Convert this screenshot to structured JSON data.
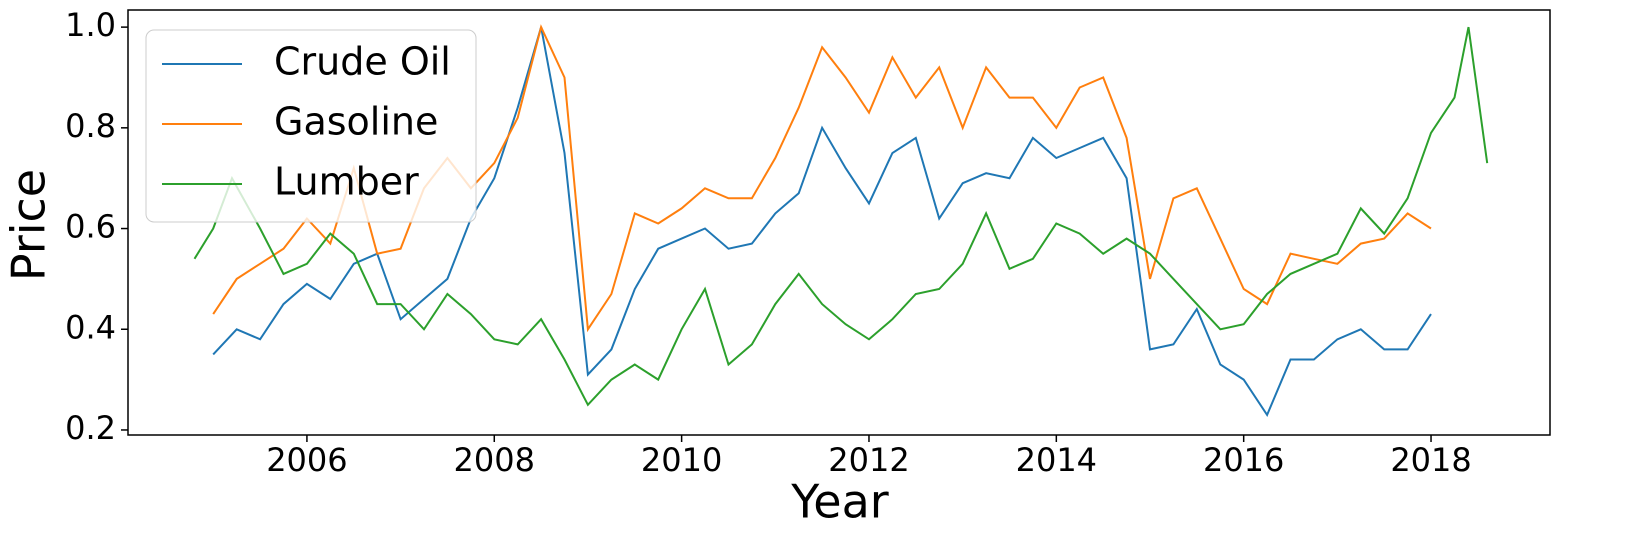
{
  "chart_data": {
    "type": "line",
    "x_label": "Year",
    "y_label": "Price",
    "xlim": [
      2004.09,
      2019.27
    ],
    "ylim": [
      0.19,
      1.034
    ],
    "xticks": [
      2006,
      2008,
      2010,
      2012,
      2014,
      2016,
      2018
    ],
    "yticks": [
      0.2,
      0.4,
      0.6,
      0.8,
      {
        "value": 1,
        "label": "1.0"
      }
    ],
    "grid": false,
    "legend": "upper left",
    "series": [
      {
        "name": "Crude Oil",
        "color": "#1f77b4",
        "x": [
          2005,
          2005.25,
          2005.5,
          2005.75,
          2006,
          2006.25,
          2006.5,
          2006.75,
          2007,
          2007.25,
          2007.5,
          2007.75,
          2008,
          2008.25,
          2008.5,
          2008.75,
          2009,
          2009.25,
          2009.5,
          2009.75,
          2010,
          2010.25,
          2010.5,
          2010.75,
          2011,
          2011.25,
          2011.5,
          2011.75,
          2012,
          2012.25,
          2012.5,
          2012.75,
          2013,
          2013.25,
          2013.5,
          2013.75,
          2014,
          2014.25,
          2014.5,
          2014.75,
          2015,
          2015.25,
          2015.5,
          2015.75,
          2016,
          2016.25,
          2016.5,
          2016.75,
          2017,
          2017.25,
          2017.5,
          2017.75,
          2018
        ],
        "values": [
          0.35,
          0.4,
          0.38,
          0.45,
          0.49,
          0.46,
          0.53,
          0.55,
          0.42,
          0.46,
          0.5,
          0.62,
          0.7,
          0.84,
          1.0,
          0.75,
          0.31,
          0.36,
          0.48,
          0.56,
          0.58,
          0.6,
          0.56,
          0.57,
          0.63,
          0.67,
          0.8,
          0.72,
          0.65,
          0.75,
          0.78,
          0.62,
          0.69,
          0.71,
          0.7,
          0.78,
          0.74,
          0.76,
          0.78,
          0.7,
          0.36,
          0.37,
          0.44,
          0.33,
          0.3,
          0.23,
          0.34,
          0.34,
          0.38,
          0.4,
          0.36,
          0.36,
          0.43
        ]
      },
      {
        "name": "Gasoline",
        "color": "#ff7f0e",
        "x": [
          2005,
          2005.25,
          2005.5,
          2005.75,
          2006,
          2006.25,
          2006.5,
          2006.75,
          2007,
          2007.25,
          2007.5,
          2007.75,
          2008,
          2008.25,
          2008.5,
          2008.75,
          2009,
          2009.25,
          2009.5,
          2009.75,
          2010,
          2010.25,
          2010.5,
          2010.75,
          2011,
          2011.25,
          2011.5,
          2011.75,
          2012,
          2012.25,
          2012.5,
          2012.75,
          2013,
          2013.25,
          2013.5,
          2013.75,
          2014,
          2014.25,
          2014.5,
          2014.75,
          2015,
          2015.25,
          2015.5,
          2015.75,
          2016,
          2016.25,
          2016.5,
          2016.75,
          2017,
          2017.25,
          2017.5,
          2017.75,
          2018
        ],
        "values": [
          0.43,
          0.5,
          0.53,
          0.56,
          0.62,
          0.57,
          0.72,
          0.55,
          0.56,
          0.68,
          0.74,
          0.68,
          0.73,
          0.82,
          1.0,
          0.9,
          0.4,
          0.47,
          0.63,
          0.61,
          0.64,
          0.68,
          0.66,
          0.66,
          0.74,
          0.84,
          0.96,
          0.9,
          0.83,
          0.94,
          0.86,
          0.92,
          0.8,
          0.92,
          0.86,
          0.86,
          0.8,
          0.88,
          0.9,
          0.78,
          0.5,
          0.66,
          0.68,
          0.58,
          0.48,
          0.45,
          0.55,
          0.54,
          0.53,
          0.57,
          0.58,
          0.63,
          0.6
        ]
      },
      {
        "name": "Lumber",
        "color": "#2ca02c",
        "x": [
          2004.8,
          2005,
          2005.2,
          2005.5,
          2005.75,
          2006,
          2006.25,
          2006.5,
          2006.75,
          2007,
          2007.25,
          2007.5,
          2007.75,
          2008,
          2008.25,
          2008.5,
          2008.75,
          2009,
          2009.25,
          2009.5,
          2009.75,
          2010,
          2010.25,
          2010.5,
          2010.75,
          2011,
          2011.25,
          2011.5,
          2011.75,
          2012,
          2012.25,
          2012.5,
          2012.75,
          2013,
          2013.25,
          2013.5,
          2013.75,
          2014,
          2014.25,
          2014.5,
          2014.75,
          2015,
          2015.25,
          2015.5,
          2015.75,
          2016,
          2016.25,
          2016.5,
          2016.75,
          2017,
          2017.25,
          2017.5,
          2017.75,
          2018,
          2018.25,
          2018.4,
          2018.6
        ],
        "values": [
          0.54,
          0.6,
          0.7,
          0.6,
          0.51,
          0.53,
          0.59,
          0.55,
          0.45,
          0.45,
          0.4,
          0.47,
          0.43,
          0.38,
          0.37,
          0.42,
          0.34,
          0.25,
          0.3,
          0.33,
          0.3,
          0.4,
          0.48,
          0.33,
          0.37,
          0.45,
          0.51,
          0.45,
          0.41,
          0.38,
          0.42,
          0.47,
          0.48,
          0.53,
          0.63,
          0.52,
          0.54,
          0.61,
          0.59,
          0.55,
          0.58,
          0.55,
          0.5,
          0.45,
          0.4,
          0.41,
          0.47,
          0.51,
          0.53,
          0.55,
          0.64,
          0.59,
          0.66,
          0.79,
          0.86,
          1.0,
          0.73
        ]
      }
    ]
  }
}
